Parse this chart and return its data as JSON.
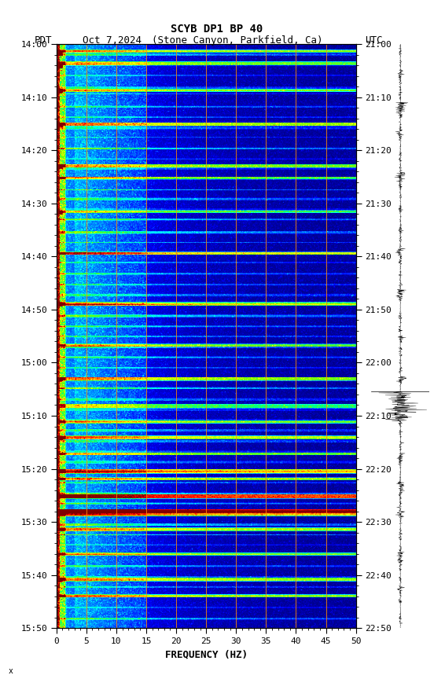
{
  "title_line1": "SCYB DP1 BP 40",
  "title_line2_pdt": "PDT",
  "title_line2_date": "Oct 7,2024",
  "title_line2_loc": "(Stone Canyon, Parkfield, Ca)",
  "title_line2_utc": "UTC",
  "xlabel": "FREQUENCY (HZ)",
  "freq_min": 0,
  "freq_max": 50,
  "freq_ticks": [
    0,
    5,
    10,
    15,
    20,
    25,
    30,
    35,
    40,
    45,
    50
  ],
  "left_time_labels": [
    "14:00",
    "14:10",
    "14:20",
    "14:30",
    "14:40",
    "14:50",
    "15:00",
    "15:10",
    "15:20",
    "15:30",
    "15:40",
    "15:50"
  ],
  "right_time_labels": [
    "21:00",
    "21:10",
    "21:20",
    "21:30",
    "21:40",
    "21:50",
    "22:00",
    "22:10",
    "22:20",
    "22:30",
    "22:40",
    "22:50"
  ],
  "orange_line_freqs": [
    5.0,
    10.0,
    15.0,
    20.0,
    25.0,
    30.0,
    35.0,
    40.0,
    45.0
  ],
  "background_color": "#ffffff",
  "fig_width": 5.52,
  "fig_height": 8.64
}
